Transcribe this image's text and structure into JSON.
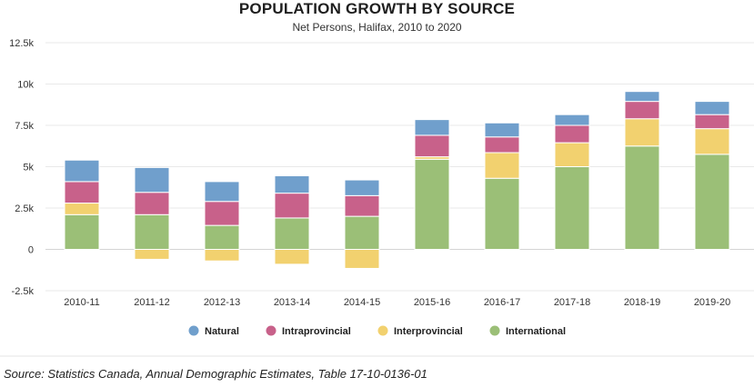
{
  "chart_data": {
    "type": "bar",
    "stacked": true,
    "title": "POPULATION GROWTH BY SOURCE",
    "subtitle": "Net Persons, Halifax, 2010 to 2020",
    "xlabel": "",
    "ylabel": "",
    "ylim": [
      -2500,
      12500
    ],
    "yticks": [
      12500,
      10000,
      7500,
      5000,
      2500,
      0,
      -2500
    ],
    "ytick_labels": [
      "12.5k",
      "10k",
      "7.5k",
      "5k",
      "2.5k",
      "0",
      "-2.5k"
    ],
    "categories": [
      "2010-11",
      "2011-12",
      "2012-13",
      "2013-14",
      "2014-15",
      "2015-16",
      "2016-17",
      "2017-18",
      "2018-19",
      "2019-20"
    ],
    "series": [
      {
        "name": "International",
        "color": "#9bbf77",
        "values": [
          2100,
          2100,
          1450,
          1900,
          2000,
          5450,
          4300,
          5000,
          6250,
          5750
        ]
      },
      {
        "name": "Interprovincial",
        "color": "#f2d16f",
        "values": [
          700,
          -600,
          -700,
          -900,
          -1150,
          150,
          1550,
          1450,
          1650,
          1550
        ]
      },
      {
        "name": "Intraprovincial",
        "color": "#c8618a",
        "values": [
          1300,
          1350,
          1450,
          1500,
          1250,
          1300,
          950,
          1050,
          1050,
          850
        ]
      },
      {
        "name": "Natural",
        "color": "#709fcc",
        "values": [
          1300,
          1500,
          1200,
          1050,
          950,
          950,
          850,
          650,
          600,
          800
        ]
      }
    ],
    "legend": {
      "position": "bottom",
      "order": [
        "Natural",
        "Intraprovincial",
        "Interprovincial",
        "International"
      ]
    },
    "grid": true
  },
  "source_text": "Source: Statistics Canada, Annual Demographic Estimates, Table 17-10-0136-01"
}
